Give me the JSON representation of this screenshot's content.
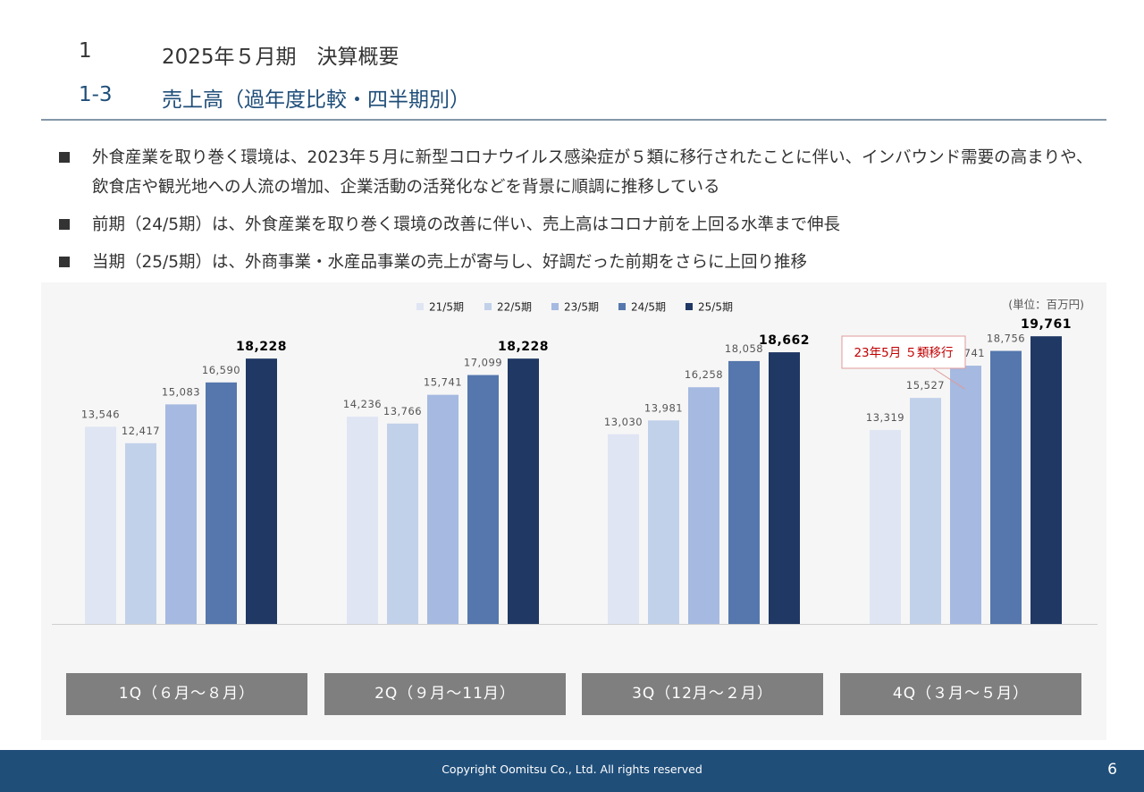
{
  "header": {
    "section_number": "1",
    "section_title": "2025年５月期　決算概要",
    "subsection_number": "1-3",
    "subsection_title": "売上高（過年度比較・四半期別）"
  },
  "bullets": [
    "外食産業を取り巻く環境は、2023年５月に新型コロナウイルス感染症が５類に移行されたことに伴い、インバウンド需要の高まりや、飲食店や観光地への人流の増加、企業活動の活発化などを背景に順調に推移している",
    "前期（24/5期）は、外食産業を取り巻く環境の改善に伴い、売上高はコロナ前を上回る水準まで伸長",
    "当期（25/5期）は、外商事業・水産品事業の売上が寄与し、好調だった前期をさらに上回り推移"
  ],
  "chart_data": {
    "type": "bar",
    "unit_note": "(単位：百万円)",
    "categories": [
      "1Q（６月～８月）",
      "2Q（９月～11月）",
      "3Q（12月～２月）",
      "4Q（３月～５月）"
    ],
    "series": [
      {
        "name": "21/5期",
        "color": "#dfe5f3",
        "values": [
          13546,
          14236,
          13030,
          13319
        ]
      },
      {
        "name": "22/5期",
        "color": "#c2d1ea",
        "values": [
          12417,
          13766,
          13981,
          15527
        ]
      },
      {
        "name": "23/5期",
        "color": "#a5b9e1",
        "values": [
          15083,
          15741,
          16258,
          17741
        ]
      },
      {
        "name": "24/5期",
        "color": "#5577ad",
        "values": [
          16590,
          17099,
          18058,
          18756
        ]
      },
      {
        "name": "25/5期",
        "color": "#1f3864",
        "values": [
          18228,
          18228,
          18662,
          19761
        ]
      }
    ],
    "ylim": [
      0,
      21000
    ],
    "legend_position": "top-center",
    "grid": false,
    "annotation": {
      "text": "23年5月 ５類移行",
      "category": "4Q（３月～５月）",
      "series": "23/5期",
      "color": "#c00000"
    }
  },
  "footer": {
    "copyright": "Copyright Oomitsu Co., Ltd. All rights reserved",
    "page_number": "6"
  }
}
